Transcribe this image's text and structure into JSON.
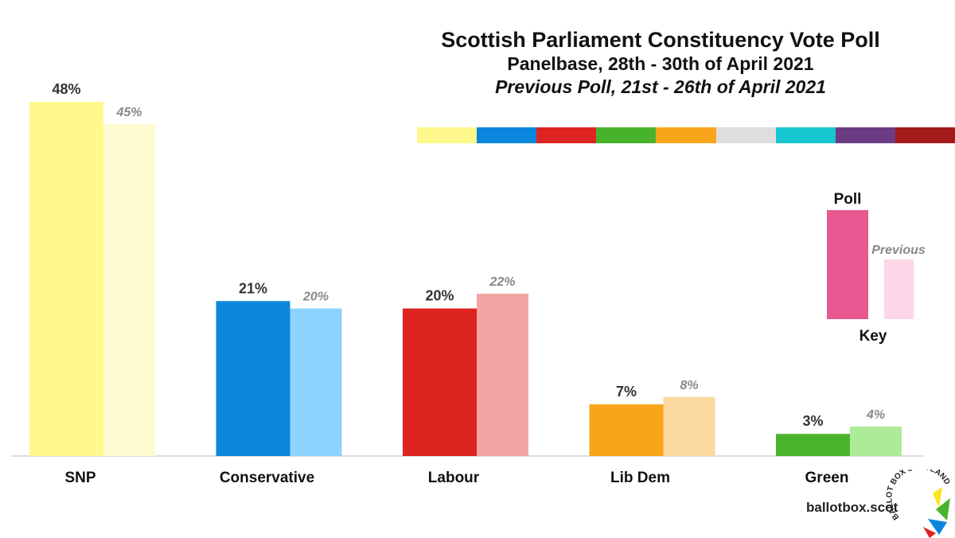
{
  "header": {
    "title": "Scottish Parliament Constituency Vote Poll",
    "subtitle": "Panelbase, 28th - 30th of April 2021",
    "previous": "Previous Poll, 21st - 26th of April 2021"
  },
  "strip_colors": [
    "#fef98a",
    "#0a87dd",
    "#dd2420",
    "#4ab32c",
    "#f8a51b",
    "#dedede",
    "#17c6ce",
    "#6b3c84",
    "#a51b1b"
  ],
  "chart_data": {
    "type": "bar",
    "categories": [
      "SNP",
      "Conservative",
      "Labour",
      "Lib Dem",
      "Green"
    ],
    "series": [
      {
        "name": "Poll",
        "values": [
          48,
          21,
          20,
          7,
          3
        ],
        "labels": [
          "48%",
          "21%",
          "20%",
          "7%",
          "3%"
        ]
      },
      {
        "name": "Previous",
        "values": [
          45,
          20,
          22,
          8,
          4
        ],
        "labels": [
          "45%",
          "20%",
          "22%",
          "8%",
          "4%"
        ]
      }
    ],
    "colors": {
      "poll": [
        "#fef98a",
        "#0a87dd",
        "#dd2420",
        "#f8a51b",
        "#4ab32c"
      ],
      "previous": [
        "#fefad0",
        "#8cd3ff",
        "#f4a5a3",
        "#fbd99f",
        "#aeeb98"
      ]
    },
    "ylim": [
      0,
      48
    ],
    "xlabel": "",
    "ylabel": "",
    "grid": false,
    "legend": {
      "title": "Key",
      "poll_label": "Poll",
      "previous_label": "Previous",
      "poll_color": "#e85790",
      "previous_color": "#fdd7e8",
      "placement": "right"
    }
  },
  "footer": {
    "site": "ballotbox.scot",
    "logo_text": "BALLOT BOX SCOTLAND"
  }
}
